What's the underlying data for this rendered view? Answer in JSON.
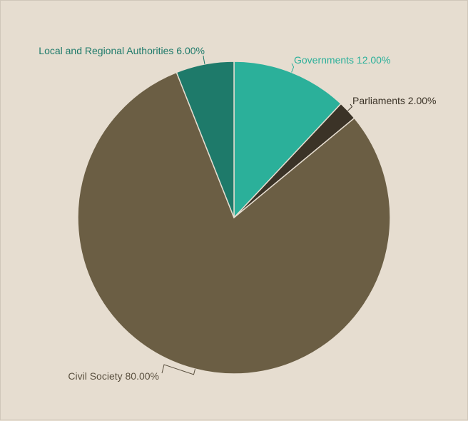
{
  "chart_data": {
    "type": "pie",
    "title": "",
    "slices": [
      {
        "name": "Governments",
        "label": "Governments 12.00%",
        "value": 12.0,
        "color": "#2bb09a",
        "label_color": "#2bb09a"
      },
      {
        "name": "Parliaments",
        "label": "Parliaments 2.00%",
        "value": 2.0,
        "color": "#3b3327",
        "label_color": "#3b3327"
      },
      {
        "name": "Civil Society",
        "label": "Civil Society 80.00%",
        "value": 80.0,
        "color": "#6b5e44",
        "label_color": "#5b5140"
      },
      {
        "name": "Local and Regional Authorities",
        "label": "Local and Regional Authorities 6.00%",
        "value": 6.0,
        "color": "#1e7a6a",
        "label_color": "#1e7a6a"
      }
    ],
    "start_angle_deg": 0,
    "direction": "clockwise",
    "legend": "none",
    "background": "#e6ddd0",
    "slice_border": "#e6ddd0",
    "connector_color": "#5b5140"
  }
}
